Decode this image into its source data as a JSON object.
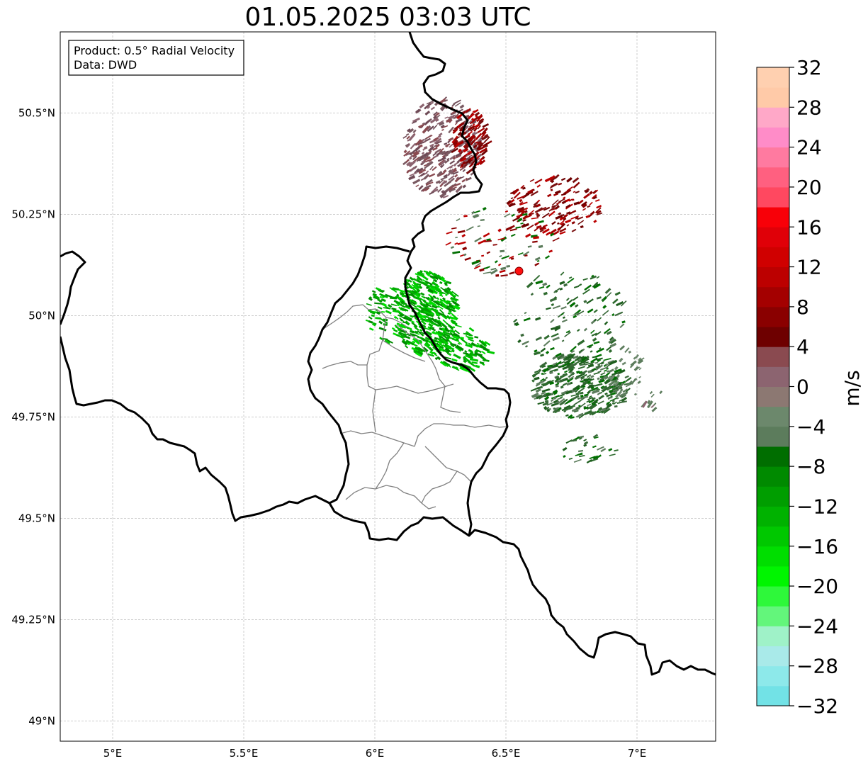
{
  "title": "01.05.2025 03:03 UTC",
  "info_box": {
    "line1": "Product: 0.5° Radial Velocity",
    "line2": "Data: DWD"
  },
  "map": {
    "lon_range": [
      4.8,
      7.3
    ],
    "lat_range": [
      48.95,
      50.7
    ],
    "x_ticks": [
      {
        "lon": 5.0,
        "label": "5°E"
      },
      {
        "lon": 5.5,
        "label": "5.5°E"
      },
      {
        "lon": 6.0,
        "label": "6°E"
      },
      {
        "lon": 6.5,
        "label": "6.5°E"
      },
      {
        "lon": 7.0,
        "label": "7°E"
      }
    ],
    "y_ticks": [
      {
        "lat": 50.5,
        "label": "50.5°N"
      },
      {
        "lat": 50.25,
        "label": "50.25°N"
      },
      {
        "lat": 50.0,
        "label": "50°N"
      },
      {
        "lat": 49.75,
        "label": "49.75°N"
      },
      {
        "lat": 49.5,
        "label": "49.5°N"
      },
      {
        "lat": 49.25,
        "label": "49.25°N"
      },
      {
        "lat": 49.0,
        "label": "49°N"
      }
    ],
    "grid": true,
    "radar_site": {
      "lon": 6.55,
      "lat": 50.11,
      "color": "#ff1010"
    },
    "borders_color": "#000000",
    "regions_color": "#808080"
  },
  "colorbar": {
    "label": "m/s",
    "min": -32,
    "max": 32,
    "tick_labels": [
      "32",
      "28",
      "24",
      "20",
      "16",
      "12",
      "8",
      "4",
      "0",
      "−4",
      "−8",
      "−12",
      "−16",
      "−20",
      "−24",
      "−28",
      "−32"
    ],
    "colors_bottom_to_top": [
      "#72e2e6",
      "#8de9ea",
      "#a9eae9",
      "#9ff2c8",
      "#63f67b",
      "#2ef83a",
      "#00f500",
      "#00de00",
      "#00c800",
      "#00b200",
      "#009e00",
      "#008a00",
      "#006e00",
      "#5c7c5c",
      "#6c886c",
      "#8c7872",
      "#8c6470",
      "#8a4a50",
      "#6e0000",
      "#8a0000",
      "#a40000",
      "#bc0000",
      "#d00000",
      "#e00008",
      "#f80008",
      "#ff4860",
      "#ff6080",
      "#ff7aa0",
      "#ff8cc8",
      "#ffa8c8",
      "#ffcaa8",
      "#ffd0b0"
    ]
  }
}
